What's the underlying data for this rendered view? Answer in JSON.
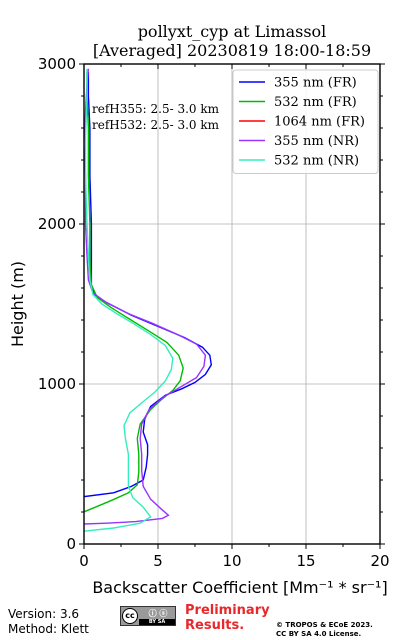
{
  "chart_data": {
    "type": "line",
    "title": [
      "pollyxt_cyp at Limassol",
      "[Averaged] 20230819 18:00-18:59"
    ],
    "xlabel": "Backscatter Coefficient [Mm⁻¹ * sr⁻¹]",
    "ylabel": "Height (m)",
    "xlim": [
      0,
      20
    ],
    "ylim": [
      0,
      3000
    ],
    "xticks": [
      "0",
      "5",
      "10",
      "15",
      "20"
    ],
    "yticks": [
      "0",
      "1000",
      "2000",
      "3000"
    ],
    "grid": true,
    "legend_position": "top-right",
    "annotations": [
      "refH355:  2.5- 3.0 km",
      "refH532:  2.5- 3.0 km"
    ],
    "series": [
      {
        "name": "355 nm (FR)",
        "color": "#0000ff",
        "points": [
          [
            -0.5,
            290
          ],
          [
            2.0,
            320
          ],
          [
            3.2,
            360
          ],
          [
            4.0,
            400
          ],
          [
            4.2,
            480
          ],
          [
            4.3,
            560
          ],
          [
            4.3,
            620
          ],
          [
            4.0,
            700
          ],
          [
            4.1,
            780
          ],
          [
            4.5,
            860
          ],
          [
            5.5,
            930
          ],
          [
            6.6,
            970
          ],
          [
            7.5,
            1010
          ],
          [
            8.2,
            1060
          ],
          [
            8.6,
            1120
          ],
          [
            8.5,
            1180
          ],
          [
            8.0,
            1230
          ],
          [
            6.8,
            1290
          ],
          [
            5.0,
            1360
          ],
          [
            3.2,
            1430
          ],
          [
            1.5,
            1510
          ],
          [
            0.7,
            1560
          ],
          [
            0.5,
            1620
          ],
          [
            0.5,
            1750
          ],
          [
            0.5,
            2000
          ],
          [
            0.4,
            2300
          ],
          [
            0.4,
            2600
          ],
          [
            0.3,
            2800
          ],
          [
            0.3,
            2950
          ]
        ]
      },
      {
        "name": "532 nm (FR)",
        "color": "#00bb00",
        "points": [
          [
            -0.3,
            190
          ],
          [
            0.5,
            220
          ],
          [
            1.8,
            270
          ],
          [
            3.0,
            320
          ],
          [
            3.6,
            370
          ],
          [
            3.7,
            450
          ],
          [
            3.7,
            560
          ],
          [
            3.6,
            660
          ],
          [
            3.8,
            750
          ],
          [
            4.5,
            840
          ],
          [
            5.2,
            900
          ],
          [
            6.0,
            960
          ],
          [
            6.5,
            1020
          ],
          [
            6.7,
            1100
          ],
          [
            6.4,
            1180
          ],
          [
            5.6,
            1260
          ],
          [
            4.4,
            1330
          ],
          [
            3.0,
            1410
          ],
          [
            1.8,
            1480
          ],
          [
            0.9,
            1540
          ],
          [
            0.5,
            1620
          ],
          [
            0.4,
            1760
          ],
          [
            0.4,
            2000
          ],
          [
            0.3,
            2300
          ],
          [
            0.3,
            2600
          ],
          [
            0.2,
            2800
          ],
          [
            0.2,
            2950
          ]
        ]
      },
      {
        "name": "1064 nm (FR)",
        "color": "#ff0000",
        "points": []
      },
      {
        "name": "355 nm (NR)",
        "color": "#9933ff",
        "points": [
          [
            0.0,
            125
          ],
          [
            1.5,
            130
          ],
          [
            3.5,
            140
          ],
          [
            5.3,
            160
          ],
          [
            5.7,
            180
          ],
          [
            5.2,
            220
          ],
          [
            4.5,
            280
          ],
          [
            4.0,
            360
          ],
          [
            3.9,
            460
          ],
          [
            3.9,
            560
          ],
          [
            3.8,
            660
          ],
          [
            3.9,
            750
          ],
          [
            4.4,
            840
          ],
          [
            5.4,
            920
          ],
          [
            6.5,
            980
          ],
          [
            7.6,
            1040
          ],
          [
            8.1,
            1110
          ],
          [
            8.2,
            1180
          ],
          [
            7.6,
            1250
          ],
          [
            6.3,
            1310
          ],
          [
            4.6,
            1380
          ],
          [
            3.0,
            1440
          ],
          [
            1.5,
            1510
          ],
          [
            0.6,
            1570
          ],
          [
            0.3,
            1650
          ],
          [
            0.2,
            1800
          ],
          [
            0.1,
            2000
          ],
          [
            0.1,
            2300
          ],
          [
            0.0,
            2500
          ],
          [
            0.1,
            2700
          ],
          [
            0.2,
            2870
          ],
          [
            0.3,
            2970
          ]
        ]
      },
      {
        "name": "532 nm (NR)",
        "color": "#33eebb",
        "points": [
          [
            0.0,
            80
          ],
          [
            2.0,
            100
          ],
          [
            3.8,
            130
          ],
          [
            4.5,
            170
          ],
          [
            4.0,
            230
          ],
          [
            3.3,
            290
          ],
          [
            3.0,
            360
          ],
          [
            3.0,
            460
          ],
          [
            3.0,
            560
          ],
          [
            2.8,
            660
          ],
          [
            2.7,
            740
          ],
          [
            3.1,
            820
          ],
          [
            4.0,
            890
          ],
          [
            4.8,
            950
          ],
          [
            5.5,
            1020
          ],
          [
            5.9,
            1090
          ],
          [
            6.0,
            1160
          ],
          [
            5.5,
            1240
          ],
          [
            4.5,
            1310
          ],
          [
            3.3,
            1380
          ],
          [
            2.2,
            1440
          ],
          [
            1.2,
            1500
          ],
          [
            0.6,
            1560
          ],
          [
            0.4,
            1650
          ],
          [
            0.3,
            1800
          ],
          [
            0.2,
            2000
          ],
          [
            0.1,
            2300
          ],
          [
            0.1,
            2550
          ],
          [
            0.2,
            2800
          ],
          [
            0.2,
            2970
          ]
        ]
      }
    ]
  },
  "footer": {
    "version": "Version: 3.6",
    "method": "Method: Klett",
    "preliminary_1": "Preliminary",
    "preliminary_2": "Results.",
    "copyright_1": "© TROPOS & ECoE 2023.",
    "copyright_2": "CC BY SA 4.0 License.",
    "cc_badge_text": "cc",
    "cc_badge_sub": "BY  SA"
  }
}
